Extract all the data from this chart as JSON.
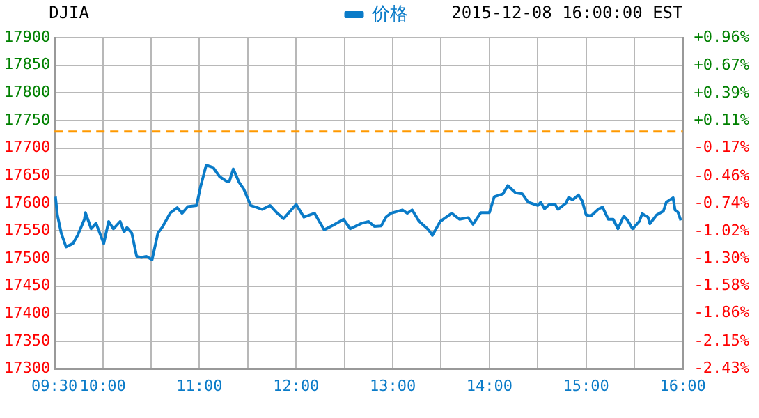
{
  "chart_data": {
    "type": "line",
    "title": "DJIA",
    "subtitle": "2015-12-08 16:00:00 EST",
    "x": [
      9.51,
      9.53,
      9.57,
      9.62,
      9.69,
      9.74,
      9.81,
      9.82,
      9.88,
      9.93,
      10.01,
      10.06,
      10.11,
      10.18,
      10.22,
      10.25,
      10.3,
      10.35,
      10.4,
      10.45,
      10.51,
      10.57,
      10.62,
      10.7,
      10.77,
      10.82,
      10.88,
      10.97,
      11.01,
      11.07,
      11.14,
      11.21,
      11.28,
      11.31,
      11.35,
      11.41,
      11.46,
      11.53,
      11.6,
      11.65,
      11.73,
      11.8,
      11.87,
      12.0,
      12.08,
      12.19,
      12.29,
      12.39,
      12.49,
      12.56,
      12.68,
      12.75,
      12.81,
      12.88,
      12.93,
      12.98,
      13.1,
      13.15,
      13.2,
      13.27,
      13.37,
      13.41,
      13.49,
      13.61,
      13.69,
      13.78,
      13.83,
      13.91,
      14.0,
      14.05,
      14.14,
      14.19,
      14.27,
      14.34,
      14.4,
      14.5,
      14.53,
      14.57,
      14.62,
      14.68,
      14.71,
      14.79,
      14.82,
      14.86,
      14.92,
      14.96,
      15.0,
      15.05,
      15.13,
      15.17,
      15.23,
      15.28,
      15.33,
      15.39,
      15.43,
      15.48,
      15.55,
      15.58,
      15.64,
      15.66,
      15.73,
      15.8,
      15.83,
      15.9,
      15.92,
      15.95,
      15.98
    ],
    "series": [
      {
        "name": "价格",
        "color": "#0a7bc8",
        "values": [
          17612,
          17579,
          17546,
          17521,
          17527,
          17542,
          17571,
          17583,
          17554,
          17564,
          17527,
          17567,
          17554,
          17567,
          17548,
          17556,
          17546,
          17504,
          17502,
          17504,
          17498,
          17546,
          17558,
          17583,
          17592,
          17582,
          17594,
          17596,
          17629,
          17669,
          17665,
          17648,
          17640,
          17640,
          17662,
          17638,
          17625,
          17596,
          17592,
          17589,
          17596,
          17583,
          17572,
          17598,
          17575,
          17582,
          17552,
          17561,
          17571,
          17554,
          17564,
          17567,
          17558,
          17559,
          17575,
          17582,
          17588,
          17582,
          17588,
          17568,
          17552,
          17542,
          17567,
          17582,
          17571,
          17574,
          17562,
          17583,
          17583,
          17612,
          17617,
          17632,
          17619,
          17617,
          17602,
          17596,
          17602,
          17590,
          17598,
          17598,
          17589,
          17600,
          17611,
          17606,
          17615,
          17604,
          17579,
          17577,
          17590,
          17593,
          17571,
          17571,
          17554,
          17577,
          17569,
          17554,
          17567,
          17581,
          17575,
          17563,
          17579,
          17586,
          17602,
          17610,
          17588,
          17584,
          17569
        ]
      }
    ],
    "xlim": [
      9.5,
      16
    ],
    "xticks": [
      {
        "value": 9.5,
        "label": "09:30"
      },
      {
        "value": 10,
        "label": "10:00"
      },
      {
        "value": 10.5,
        "label": null
      },
      {
        "value": 11,
        "label": "11:00"
      },
      {
        "value": 11.5,
        "label": null
      },
      {
        "value": 12,
        "label": "12:00"
      },
      {
        "value": 12.5,
        "label": null
      },
      {
        "value": 13,
        "label": "13:00"
      },
      {
        "value": 13.5,
        "label": null
      },
      {
        "value": 14,
        "label": "14:00"
      },
      {
        "value": 14.5,
        "label": null
      },
      {
        "value": 15,
        "label": "15:00"
      },
      {
        "value": 15.5,
        "label": null
      },
      {
        "value": 16,
        "label": "16:00"
      }
    ],
    "ylim": [
      17300,
      17900
    ],
    "yticks": [
      17300,
      17350,
      17400,
      17450,
      17500,
      17550,
      17600,
      17650,
      17700,
      17750,
      17800,
      17850,
      17900
    ],
    "y2lim": [
      -2.43,
      0.96
    ],
    "y2ticks": [
      {
        "value": 0.96,
        "label": "+0.96%"
      },
      {
        "value": 0.67,
        "label": "+0.67%"
      },
      {
        "value": 0.39,
        "label": "+0.39%"
      },
      {
        "value": 0.11,
        "label": "+0.11%"
      },
      {
        "value": -0.17,
        "label": "-0.17%"
      },
      {
        "value": -0.46,
        "label": "-0.46%"
      },
      {
        "value": -0.74,
        "label": "-0.74%"
      },
      {
        "value": -1.02,
        "label": "-1.02%"
      },
      {
        "value": -1.3,
        "label": "-1.30%"
      },
      {
        "value": -1.58,
        "label": "-1.58%"
      },
      {
        "value": -1.86,
        "label": "-1.86%"
      },
      {
        "value": -2.15,
        "label": "-2.15%"
      },
      {
        "value": -2.43,
        "label": "-2.43%"
      }
    ],
    "ref_lines": [
      {
        "axis": "y2",
        "value": 0,
        "color": "#ff9900",
        "line_style": "dashed"
      }
    ],
    "grid": true,
    "legend": "top",
    "marker": "none",
    "line_style": "solid"
  }
}
